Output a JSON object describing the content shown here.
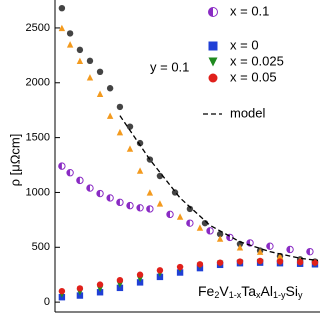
{
  "chart_data": {
    "type": "scatter",
    "ylabel": "ρ [μΩcm]",
    "ylim": [
      -90,
      2700
    ],
    "yticks": [
      0,
      500,
      1000,
      1500,
      2000,
      2500
    ],
    "xlim": [
      0,
      100
    ],
    "legend_group_label": "y = 0.1",
    "annotation": [
      "Fe",
      "2",
      "V",
      "1-x",
      "Ta",
      "x",
      "Al",
      "1-y",
      "Si",
      "y"
    ],
    "series": [
      {
        "color": "#444444",
        "marker": "circle",
        "x": [
          2.6,
          5.7,
          9.4,
          13.2,
          17,
          20.8,
          24.5,
          28.3,
          32.1,
          35.8,
          39.6,
          45.3,
          50.9,
          56.6,
          62.3,
          69.8,
          77.4,
          84.9,
          92.5,
          98.1
        ],
        "values": [
          2680,
          2450,
          2300,
          2200,
          2100,
          1950,
          1780,
          1600,
          1450,
          1300,
          1150,
          1000,
          850,
          720,
          620,
          530,
          470,
          420,
          390,
          370
        ]
      },
      {
        "color": "#f39a1e",
        "marker": "triangle-up",
        "x": [
          2.6,
          5.7,
          9.4,
          13.2,
          17,
          20.8,
          24.5,
          28.3,
          32.1,
          35.8,
          39.6,
          47.2,
          54.7,
          62.3,
          69.8,
          77.4,
          84.9,
          92.5,
          98.1
        ],
        "values": [
          2500,
          2350,
          2200,
          2050,
          1900,
          1700,
          1550,
          1400,
          1200,
          1000,
          900,
          780,
          680,
          580,
          500,
          460,
          420,
          380,
          350
        ]
      },
      {
        "name": "x = 0.1",
        "color": "#8a2bc4",
        "marker": "half-circle",
        "x": [
          2.6,
          5.7,
          9.4,
          13.2,
          17,
          20.8,
          24.5,
          28.3,
          32.1,
          35.8,
          43.4,
          50.9,
          58.5,
          66,
          73.6,
          81.1,
          88.7,
          96.2
        ],
        "values": [
          1240,
          1180,
          1110,
          1040,
          990,
          950,
          910,
          880,
          860,
          850,
          800,
          720,
          650,
          590,
          540,
          510,
          480,
          460
        ]
      },
      {
        "name": "x = 0",
        "color": "#1f3fd6",
        "marker": "square",
        "x": [
          2.6,
          9.4,
          17,
          24.5,
          32.1,
          39.6,
          47.2,
          54.7,
          62.3,
          69.8,
          77.4,
          84.9,
          92.5,
          98.1
        ],
        "values": [
          45,
          60,
          90,
          130,
          180,
          230,
          270,
          310,
          340,
          355,
          360,
          355,
          350,
          345
        ]
      },
      {
        "name": "x = 0.025",
        "color": "#1f8a1f",
        "marker": "triangle-down",
        "x": [
          2.6,
          9.4,
          17,
          24.5,
          32.1,
          39.6,
          47.2,
          54.7,
          62.3,
          69.8,
          77.4,
          84.9,
          92.5,
          98.1
        ],
        "values": [
          70,
          90,
          120,
          160,
          210,
          260,
          300,
          330,
          350,
          360,
          365,
          360,
          355,
          350
        ]
      },
      {
        "name": "x = 0.05",
        "color": "#e0201b",
        "marker": "circle",
        "x": [
          2.6,
          9.4,
          17,
          24.5,
          32.1,
          39.6,
          47.2,
          54.7,
          62.3,
          69.8,
          77.4,
          84.9,
          92.5,
          98.1
        ],
        "values": [
          100,
          125,
          160,
          200,
          250,
          290,
          320,
          345,
          360,
          370,
          375,
          370,
          365,
          360
        ]
      },
      {
        "name": "model",
        "color": "#000000",
        "marker": "dashed-line",
        "x": [
          24.5,
          35.8,
          47.2,
          58.5,
          69.8,
          81.1,
          92.5,
          99.2
        ],
        "values": [
          1700,
          1300,
          950,
          700,
          550,
          460,
          400,
          380
        ]
      }
    ]
  }
}
